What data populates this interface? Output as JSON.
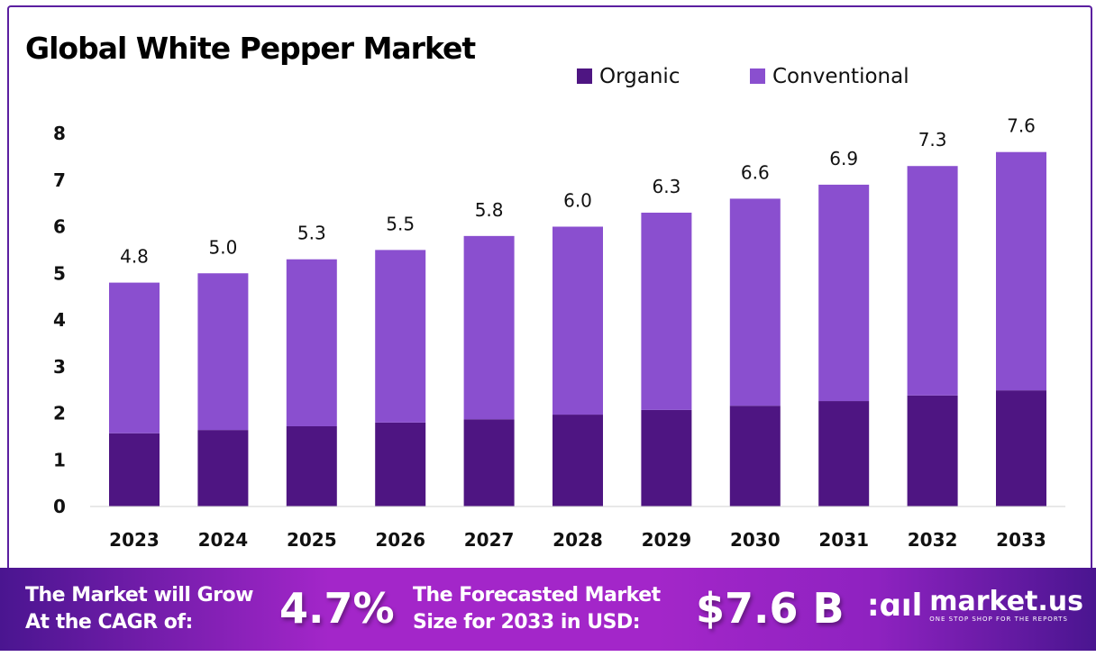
{
  "chart_data": {
    "type": "bar",
    "stacked": true,
    "title": "Global White Pepper Market",
    "categories": [
      "2023",
      "2024",
      "2025",
      "2026",
      "2027",
      "2028",
      "2029",
      "2030",
      "2031",
      "2032",
      "2033"
    ],
    "series": [
      {
        "name": "Organic",
        "color": "#4e1582",
        "values": [
          1.57,
          1.64,
          1.72,
          1.8,
          1.87,
          1.97,
          2.07,
          2.16,
          2.26,
          2.38,
          2.49
        ]
      },
      {
        "name": "Conventional",
        "color": "#8a4fcf",
        "values": [
          3.23,
          3.36,
          3.58,
          3.7,
          3.93,
          4.03,
          4.23,
          4.44,
          4.64,
          4.92,
          5.11
        ]
      }
    ],
    "totals": [
      "4.8",
      "5.0",
      "5.3",
      "5.5",
      "5.8",
      "6.0",
      "6.3",
      "6.6",
      "6.9",
      "7.3",
      "7.6"
    ],
    "ylim": [
      0,
      8
    ],
    "yticks": [
      "0",
      "1",
      "2",
      "3",
      "4",
      "5",
      "6",
      "7",
      "8"
    ],
    "grid": false,
    "legend": "top-right"
  },
  "footer": {
    "cagr_label_line1": "The Market will Grow",
    "cagr_label_line2": "At the CAGR of:",
    "cagr_value": "4.7%",
    "forecast_label_line1": "The Forecasted Market",
    "forecast_label_line2": "Size for 2033 in USD:",
    "forecast_value": "$7.6 B",
    "logo_name": "market.us",
    "logo_tagline": "ONE STOP SHOP FOR THE REPORTS"
  }
}
